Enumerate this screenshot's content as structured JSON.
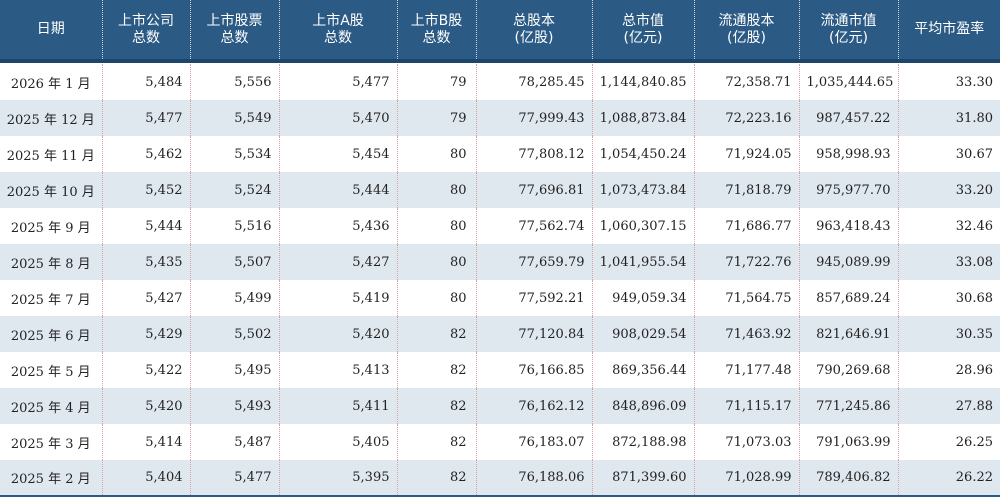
{
  "headers": [
    [
      "日期"
    ],
    [
      "上市公司",
      "总数"
    ],
    [
      "上市股票",
      "总数"
    ],
    [
      "上市A股",
      "总数"
    ],
    [
      "上市B股",
      "总数"
    ],
    [
      "总股本",
      "(亿股)"
    ],
    [
      "总市值",
      "(亿元)"
    ],
    [
      "流通股本",
      "(亿股)"
    ],
    [
      "流通市值",
      "(亿元)"
    ],
    [
      "平均市盈率"
    ]
  ],
  "rows": [
    [
      "2026 年 1 月",
      "5,484",
      "5,556",
      "5,477",
      "79",
      "78,285.45",
      "1,144,840.85",
      "72,358.71",
      "1,035,444.65",
      "33.30"
    ],
    [
      "2025 年 12 月",
      "5,477",
      "5,549",
      "5,470",
      "79",
      "77,999.43",
      "1,088,873.84",
      "72,223.16",
      "987,457.22",
      "31.80"
    ],
    [
      "2025 年 11 月",
      "5,462",
      "5,534",
      "5,454",
      "80",
      "77,808.12",
      "1,054,450.24",
      "71,924.05",
      "958,998.93",
      "30.67"
    ],
    [
      "2025 年 10 月",
      "5,452",
      "5,524",
      "5,444",
      "80",
      "77,696.81",
      "1,073,473.84",
      "71,818.79",
      "975,977.70",
      "33.20"
    ],
    [
      "2025 年 9 月",
      "5,444",
      "5,516",
      "5,436",
      "80",
      "77,562.74",
      "1,060,307.15",
      "71,686.77",
      "963,418.43",
      "32.46"
    ],
    [
      "2025 年 8 月",
      "5,435",
      "5,507",
      "5,427",
      "80",
      "77,659.79",
      "1,041,955.54",
      "71,722.76",
      "945,089.99",
      "33.08"
    ],
    [
      "2025 年 7 月",
      "5,427",
      "5,499",
      "5,419",
      "80",
      "77,592.21",
      "949,059.34",
      "71,564.75",
      "857,689.24",
      "30.68"
    ],
    [
      "2025 年 6 月",
      "5,429",
      "5,502",
      "5,420",
      "82",
      "77,120.84",
      "908,029.54",
      "71,463.92",
      "821,646.91",
      "30.35"
    ],
    [
      "2025 年 5 月",
      "5,422",
      "5,495",
      "5,413",
      "82",
      "76,166.85",
      "869,356.44",
      "71,177.48",
      "790,269.68",
      "28.96"
    ],
    [
      "2025 年 4 月",
      "5,420",
      "5,493",
      "5,411",
      "82",
      "76,162.12",
      "848,896.09",
      "71,115.17",
      "771,245.86",
      "27.88"
    ],
    [
      "2025 年 3 月",
      "5,414",
      "5,487",
      "5,405",
      "82",
      "76,183.07",
      "872,188.98",
      "71,073.03",
      "791,063.99",
      "26.25"
    ],
    [
      "2025 年 2 月",
      "5,404",
      "5,477",
      "5,395",
      "82",
      "76,188.06",
      "871,399.60",
      "71,028.99",
      "789,406.82",
      "26.22"
    ]
  ]
}
